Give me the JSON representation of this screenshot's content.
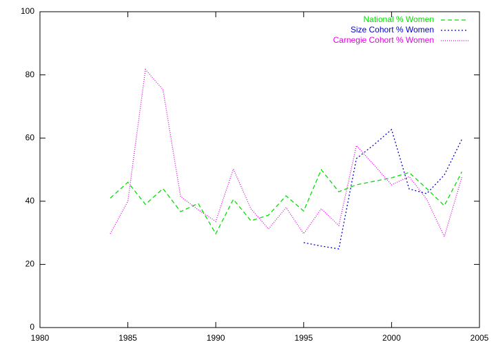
{
  "chart_data": {
    "type": "line",
    "x": [
      1984,
      1985,
      1986,
      1987,
      1988,
      1989,
      1990,
      1991,
      1992,
      1993,
      1994,
      1995,
      1996,
      1997,
      1998,
      1999,
      2000,
      2001,
      2002,
      2003,
      2004
    ],
    "series": [
      {
        "name": "National % Women",
        "color": "#00e000",
        "dash": "6,4",
        "values": [
          41,
          46,
          39,
          44,
          36.7,
          39.3,
          29.7,
          40.6,
          33.8,
          35.6,
          41.7,
          36.9,
          50,
          43,
          45.2,
          46.3,
          47.4,
          49.1,
          44,
          38.6,
          49.3
        ]
      },
      {
        "name": "Size Cohort % Women",
        "color": "#0000cc",
        "dash": "2,3",
        "values": [
          null,
          null,
          null,
          null,
          null,
          null,
          null,
          null,
          null,
          null,
          null,
          26.9,
          25.8,
          24.9,
          53.5,
          57.9,
          62.7,
          43.9,
          42.4,
          48.3,
          59.6
        ]
      },
      {
        "name": "Carnegie Cohort % Women",
        "color": "#e000e0",
        "dash": "1,2",
        "values": [
          29.7,
          40,
          81.7,
          75.3,
          41.5,
          37.3,
          33.6,
          50.2,
          37.6,
          31.2,
          38,
          29.7,
          37.6,
          32.3,
          57.6,
          51.5,
          45.2,
          47.8,
          40.6,
          28.8,
          47.6
        ]
      }
    ],
    "xlim": [
      1980,
      2005
    ],
    "xticks": [
      1980,
      1985,
      1990,
      1995,
      2000,
      2005
    ],
    "ylim": [
      0,
      100
    ],
    "yticks": [
      0,
      20,
      40,
      60,
      80,
      100
    ],
    "legend": "top-right"
  }
}
